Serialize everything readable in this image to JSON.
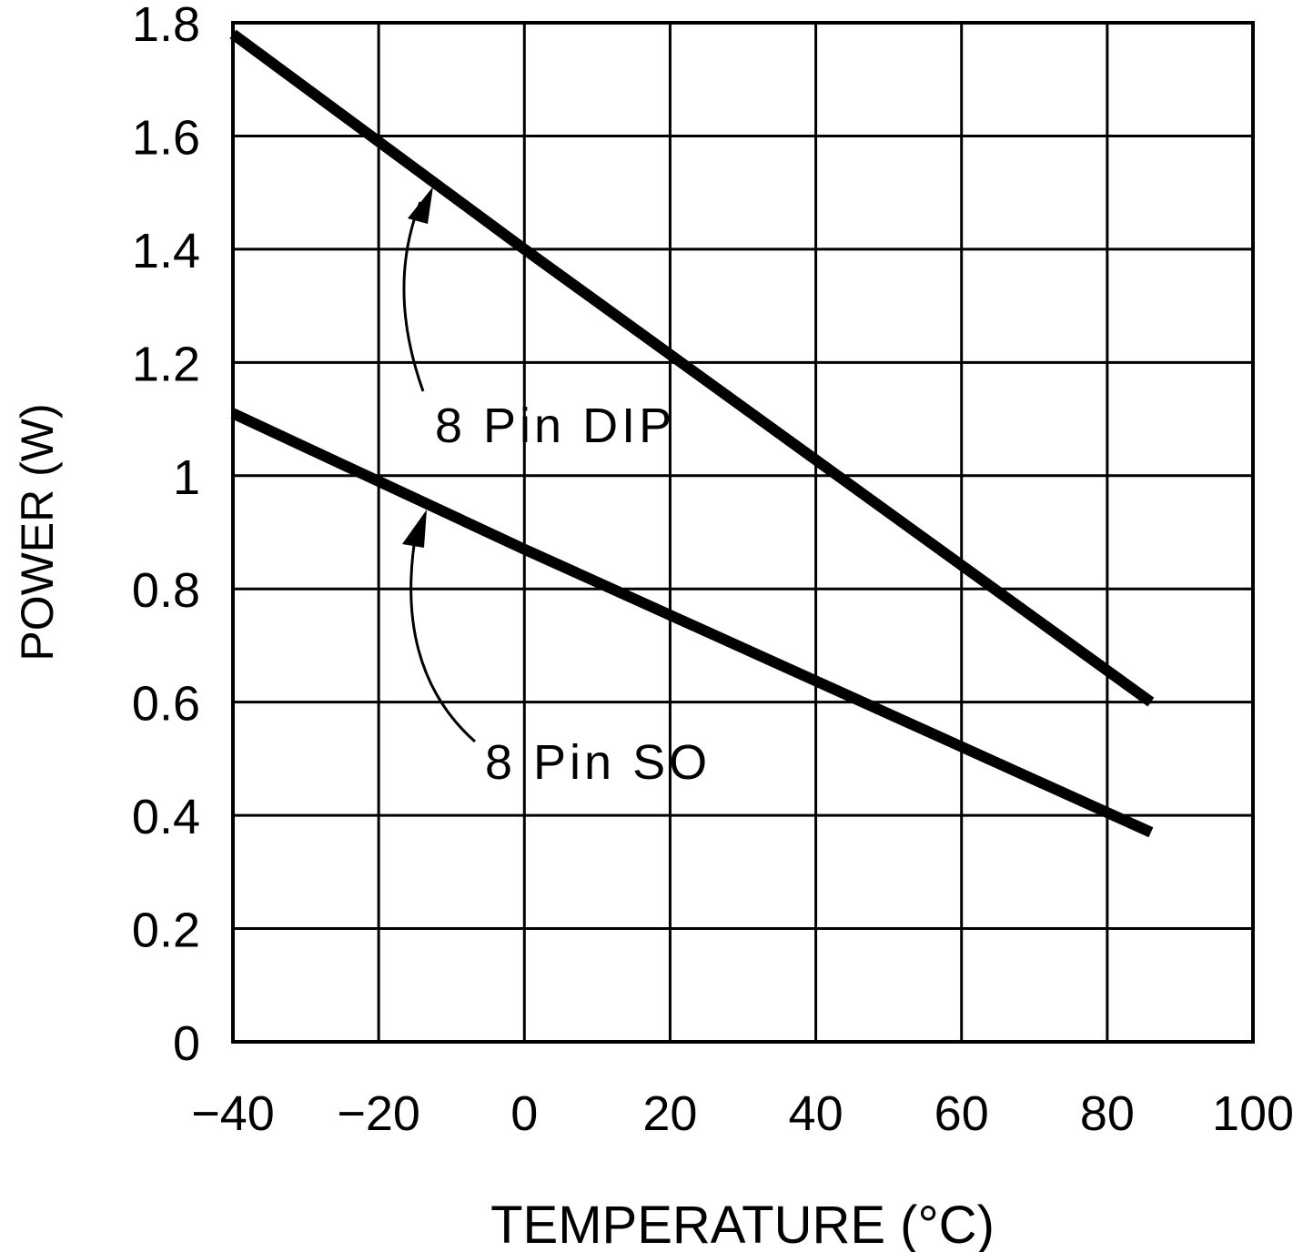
{
  "chart_data": {
    "type": "line",
    "title": "",
    "xlabel": "TEMPERATURE (°C)",
    "ylabel": "POWER (W)",
    "xlim": [
      -40,
      100
    ],
    "ylim": [
      0,
      1.8
    ],
    "xticks": [
      -40,
      -20,
      0,
      20,
      40,
      60,
      80,
      100
    ],
    "yticks": [
      0,
      0.2,
      0.4,
      0.6,
      0.8,
      1,
      1.2,
      1.4,
      1.6,
      1.8
    ],
    "xtick_labels": [
      "−40",
      "−20",
      "0",
      "20",
      "40",
      "60",
      "80",
      "100"
    ],
    "ytick_labels": [
      "0",
      "0.2",
      "0.4",
      "0.6",
      "0.8",
      "1",
      "1.2",
      "1.4",
      "1.6",
      "1.8"
    ],
    "grid": true,
    "line_color": "#000000",
    "series": [
      {
        "name": "8 Pin DIP",
        "x": [
          -40,
          0,
          86
        ],
        "y": [
          1.78,
          1.4,
          0.6
        ]
      },
      {
        "name": "8 Pin SO",
        "x": [
          -40,
          0,
          86
        ],
        "y": [
          1.11,
          0.87,
          0.37
        ]
      }
    ],
    "annotations": [
      {
        "text": "8 Pin DIP",
        "points_to_series": "8 Pin DIP",
        "arrow": true
      },
      {
        "text": "8 Pin SO",
        "points_to_series": "8 Pin SO",
        "arrow": true
      }
    ]
  }
}
